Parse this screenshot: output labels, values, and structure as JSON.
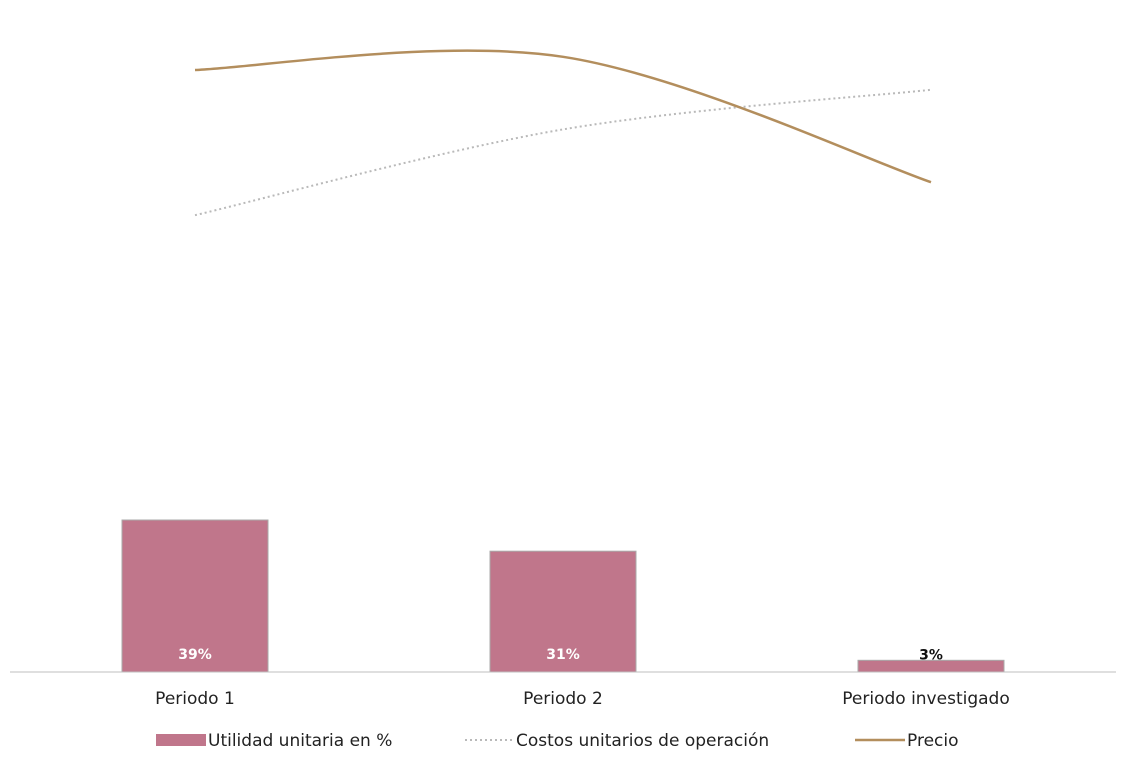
{
  "chart_data": {
    "type": "bar",
    "categories": [
      "Periodo 1",
      "Periodo 2",
      "Periodo investigado"
    ],
    "series": [
      {
        "name": "Utilidad unitaria en %",
        "type": "bar",
        "values": [
          39,
          31,
          3
        ],
        "data_labels": [
          "39%",
          "31%",
          "3%"
        ],
        "color": "#c0768b"
      },
      {
        "name": "Costos unitarios de operación",
        "type": "line",
        "style": "dotted",
        "values": [
          0.78,
          0.91,
          0.97
        ],
        "color": "#b9b9b9"
      },
      {
        "name": "Precio",
        "type": "line",
        "style": "solid",
        "values": [
          1.0,
          1.02,
          0.83
        ],
        "color": "#b38e5d"
      }
    ],
    "bar_ylim": [
      0,
      45
    ],
    "line_ylim": [
      0.5,
      1.05
    ],
    "grid": false,
    "legend_position": "bottom",
    "title": "",
    "xlabel": "",
    "ylabel": ""
  }
}
